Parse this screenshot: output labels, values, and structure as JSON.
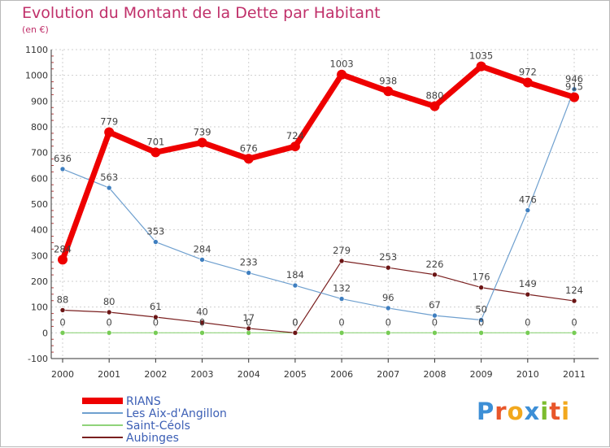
{
  "title": "Evolution du Montant de la Dette par Habitant",
  "subtitle": "(en €)",
  "logo": {
    "letters": [
      "P",
      "r",
      "o",
      "x",
      "i",
      "t",
      "i"
    ],
    "colors": [
      "#3d8fd6",
      "#e8562a",
      "#f2a81d",
      "#3d8fd6",
      "#7cbc2e",
      "#e8562a",
      "#f2a81d"
    ]
  },
  "chart_data": {
    "type": "line",
    "x": [
      "2000",
      "2001",
      "2002",
      "2003",
      "2004",
      "2005",
      "2006",
      "2007",
      "2008",
      "2009",
      "2010",
      "2011"
    ],
    "ylim": [
      -100,
      1100
    ],
    "yticks": [
      -100,
      0,
      100,
      200,
      300,
      400,
      500,
      600,
      700,
      800,
      900,
      1000,
      1100
    ],
    "grid": true,
    "legend": "bottom-left",
    "series": [
      {
        "name": "RIANS",
        "color": "#ee0000",
        "marker": "#ee0000",
        "width": 7,
        "values": [
          284,
          779,
          701,
          739,
          676,
          724,
          1003,
          938,
          880,
          1035,
          972,
          915
        ],
        "labels": [
          "284",
          "779",
          "701",
          "739",
          "676",
          "724",
          "1003",
          "938",
          "880",
          "1035",
          "972",
          "915"
        ]
      },
      {
        "name": "Les Aix-d'Angillon",
        "color": "#6fa0cf",
        "marker": "#3f7fc0",
        "width": 1.2,
        "values": [
          636,
          563,
          353,
          284,
          233,
          184,
          132,
          96,
          67,
          50,
          476,
          946
        ],
        "labels": [
          "636",
          "563",
          "353",
          "284",
          "233",
          "184",
          "132",
          "96",
          "67",
          "50",
          "476",
          "946"
        ]
      },
      {
        "name": "Saint-Céols",
        "color": "#8fd37a",
        "marker": "#77cc55",
        "width": 1.2,
        "values": [
          0,
          0,
          0,
          0,
          0,
          0,
          0,
          0,
          0,
          0,
          0,
          0
        ],
        "labels": [
          "0",
          "0",
          "0",
          "0",
          "0",
          "0",
          "0",
          "0",
          "0",
          "0",
          "0",
          "0"
        ]
      },
      {
        "name": "Aubinges",
        "color": "#7a1f1f",
        "marker": "#6b1515",
        "width": 1.2,
        "values": [
          88,
          80,
          61,
          40,
          17,
          0,
          279,
          253,
          226,
          176,
          149,
          124
        ],
        "labels": [
          "88",
          "80",
          "61",
          "40",
          "17",
          "0",
          "279",
          "253",
          "226",
          "176",
          "149",
          "124"
        ]
      }
    ]
  }
}
